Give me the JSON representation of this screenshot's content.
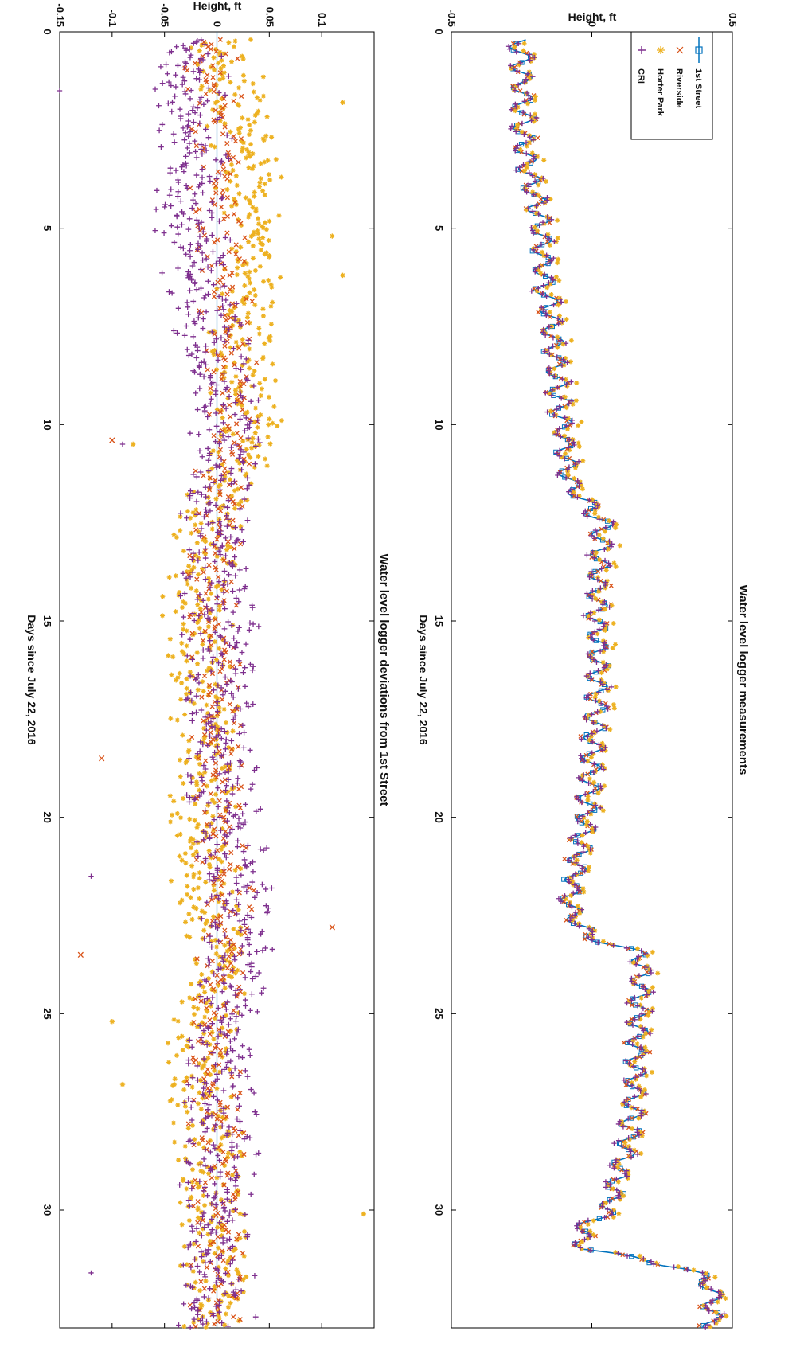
{
  "figure": {
    "orientation": "rotated-90-clockwise"
  },
  "colors": {
    "first_street": "#0072BD",
    "riverside": "#D95319",
    "horter_park": "#EDB120",
    "cri": "#7E2F8E"
  },
  "chart_data": [
    {
      "type": "line",
      "title": "Water level logger measurements",
      "xlabel": "Days since July 22, 2016",
      "ylabel": "Height, ft",
      "xlim": [
        0,
        33
      ],
      "ylim": [
        -0.5,
        0.5
      ],
      "xticks": [
        0,
        5,
        10,
        15,
        20,
        25,
        30
      ],
      "xtick_labels": [
        "0",
        "5",
        "10",
        "15",
        "20",
        "25",
        "30"
      ],
      "yticks": [
        -0.5,
        0,
        0.5
      ],
      "ytick_labels": [
        "-0.5",
        "0",
        "0.5"
      ],
      "tide_amplitude": 0.035,
      "tide_period_days": 0.517,
      "legend": {
        "location": "top-right"
      },
      "series": [
        {
          "key": "first_street",
          "name": "1st Street",
          "marker": "square",
          "line": true
        },
        {
          "key": "riverside",
          "name": "Riverside",
          "marker": "x",
          "line": false
        },
        {
          "key": "horter_park",
          "name": "Horter Park",
          "marker": "star",
          "line": false
        },
        {
          "key": "cri",
          "name": "CRI",
          "marker": "plus",
          "line": false
        }
      ],
      "trend": {
        "x": [
          0,
          1,
          3,
          5,
          6.5,
          7,
          9,
          11.5,
          12.5,
          14,
          17,
          20,
          22.3,
          23,
          23.5,
          26,
          28,
          30,
          30.5,
          31,
          31.5,
          32,
          33
        ],
        "y": [
          -0.26,
          -0.25,
          -0.24,
          -0.18,
          -0.17,
          -0.15,
          -0.12,
          -0.08,
          0.04,
          0.02,
          0.02,
          -0.02,
          -0.08,
          -0.02,
          0.18,
          0.16,
          0.14,
          0.06,
          -0.04,
          -0.02,
          0.35,
          0.43,
          0.43
        ]
      }
    },
    {
      "type": "scatter",
      "title": "Water level logger deviations from 1st Street",
      "xlabel": "Days since July 22, 2016",
      "ylabel": "Height, ft",
      "xlim": [
        0,
        33
      ],
      "ylim": [
        -0.15,
        0.15
      ],
      "xticks": [
        0,
        5,
        10,
        15,
        20,
        25,
        30
      ],
      "xtick_labels": [
        "0",
        "5",
        "10",
        "15",
        "20",
        "25",
        "30"
      ],
      "yticks": [
        -0.15,
        -0.1,
        -0.05,
        0,
        0.05,
        0.1
      ],
      "ytick_labels": [
        "-0.15",
        "-0.1",
        "-0.05",
        "0",
        "0.05",
        "0.1"
      ],
      "series": [
        {
          "key": "first_street",
          "name": "1st Street",
          "marker": "line",
          "x": [
            0,
            10.5,
            33
          ],
          "y": [
            0,
            0,
            0
          ]
        },
        {
          "key": "horter_park",
          "name": "Horter Park",
          "marker": "star",
          "x": [
            0,
            2,
            4,
            6,
            8,
            10,
            11,
            12,
            14,
            16,
            18,
            20,
            22,
            24,
            26,
            28,
            30,
            32,
            33
          ],
          "y": [
            0.0,
            0.02,
            0.03,
            0.035,
            0.025,
            0.03,
            0.02,
            0.0,
            -0.02,
            -0.015,
            -0.01,
            -0.015,
            -0.01,
            0.005,
            -0.02,
            -0.01,
            -0.005,
            0.0,
            0.0
          ]
        },
        {
          "key": "cri",
          "name": "CRI",
          "marker": "plus",
          "x": [
            0,
            2,
            4,
            6,
            8,
            10,
            11,
            12,
            14,
            16,
            18,
            20,
            22,
            24,
            26,
            28,
            30,
            32,
            33
          ],
          "y": [
            -0.03,
            -0.02,
            -0.025,
            -0.02,
            0.0,
            0.01,
            0.01,
            0.0,
            0.0,
            0.005,
            0.0,
            0.005,
            0.02,
            0.015,
            0.0,
            0.005,
            0.0,
            0.0,
            0.0
          ]
        },
        {
          "key": "riverside",
          "name": "Riverside",
          "marker": "x",
          "x": [
            0,
            2,
            4,
            6,
            8,
            10,
            11,
            12,
            14,
            16,
            18,
            20,
            22,
            24,
            26,
            28,
            30,
            32,
            33
          ],
          "y": [
            -0.01,
            0.0,
            0.0,
            0.005,
            0.01,
            0.015,
            0.005,
            0.0,
            -0.005,
            0.0,
            0.0,
            0.0,
            0.01,
            0.005,
            -0.005,
            0.0,
            0.0,
            0.0,
            0.0
          ]
        }
      ],
      "outliers": [
        {
          "key": "horter_park",
          "x": 1.8,
          "y": 0.12
        },
        {
          "key": "horter_park",
          "x": 5.2,
          "y": 0.11
        },
        {
          "key": "horter_park",
          "x": 6.2,
          "y": 0.12
        },
        {
          "key": "horter_park",
          "x": 30.1,
          "y": 0.14
        },
        {
          "key": "horter_park",
          "x": 10.5,
          "y": -0.08
        },
        {
          "key": "horter_park",
          "x": 26.8,
          "y": -0.09
        },
        {
          "key": "horter_park",
          "x": 25.2,
          "y": -0.1
        },
        {
          "key": "riverside",
          "x": 22.8,
          "y": 0.11
        },
        {
          "key": "riverside",
          "x": 18.5,
          "y": -0.11
        },
        {
          "key": "riverside",
          "x": 10.4,
          "y": -0.1
        },
        {
          "key": "riverside",
          "x": 23.5,
          "y": -0.13
        },
        {
          "key": "cri",
          "x": 1.5,
          "y": -0.15
        },
        {
          "key": "cri",
          "x": 10.5,
          "y": -0.09
        },
        {
          "key": "cri",
          "x": 21.5,
          "y": -0.12
        },
        {
          "key": "cri",
          "x": 31.6,
          "y": -0.12
        }
      ]
    }
  ]
}
